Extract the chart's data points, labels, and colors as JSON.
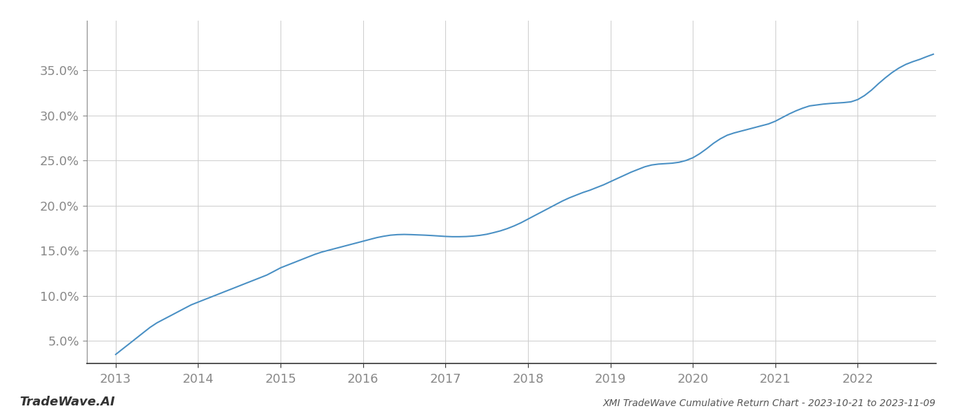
{
  "title": "XMI TradeWave Cumulative Return Chart - 2023-10-21 to 2023-11-09",
  "watermark": "TradeWave.AI",
  "line_color": "#4a90c4",
  "background_color": "#ffffff",
  "grid_color": "#cccccc",
  "x_values": [
    2013.0,
    2013.083,
    2013.167,
    2013.25,
    2013.333,
    2013.417,
    2013.5,
    2013.583,
    2013.667,
    2013.75,
    2013.833,
    2013.917,
    2014.0,
    2014.083,
    2014.167,
    2014.25,
    2014.333,
    2014.417,
    2014.5,
    2014.583,
    2014.667,
    2014.75,
    2014.833,
    2014.917,
    2015.0,
    2015.083,
    2015.167,
    2015.25,
    2015.333,
    2015.417,
    2015.5,
    2015.583,
    2015.667,
    2015.75,
    2015.833,
    2015.917,
    2016.0,
    2016.083,
    2016.167,
    2016.25,
    2016.333,
    2016.417,
    2016.5,
    2016.583,
    2016.667,
    2016.75,
    2016.833,
    2016.917,
    2017.0,
    2017.083,
    2017.167,
    2017.25,
    2017.333,
    2017.417,
    2017.5,
    2017.583,
    2017.667,
    2017.75,
    2017.833,
    2017.917,
    2018.0,
    2018.083,
    2018.167,
    2018.25,
    2018.333,
    2018.417,
    2018.5,
    2018.583,
    2018.667,
    2018.75,
    2018.833,
    2018.917,
    2019.0,
    2019.083,
    2019.167,
    2019.25,
    2019.333,
    2019.417,
    2019.5,
    2019.583,
    2019.667,
    2019.75,
    2019.833,
    2019.917,
    2020.0,
    2020.083,
    2020.167,
    2020.25,
    2020.333,
    2020.417,
    2020.5,
    2020.583,
    2020.667,
    2020.75,
    2020.833,
    2020.917,
    2021.0,
    2021.083,
    2021.167,
    2021.25,
    2021.333,
    2021.417,
    2021.5,
    2021.583,
    2021.667,
    2021.75,
    2021.833,
    2021.917,
    2022.0,
    2022.083,
    2022.167,
    2022.25,
    2022.333,
    2022.417,
    2022.5,
    2022.583,
    2022.667,
    2022.75,
    2022.833,
    2022.917
  ],
  "y_values": [
    3.5,
    4.1,
    4.7,
    5.3,
    5.9,
    6.5,
    7.0,
    7.4,
    7.8,
    8.2,
    8.6,
    9.0,
    9.3,
    9.6,
    9.9,
    10.2,
    10.5,
    10.8,
    11.1,
    11.4,
    11.7,
    12.0,
    12.3,
    12.7,
    13.1,
    13.4,
    13.7,
    14.0,
    14.3,
    14.6,
    14.85,
    15.05,
    15.25,
    15.45,
    15.65,
    15.85,
    16.05,
    16.25,
    16.45,
    16.6,
    16.72,
    16.78,
    16.8,
    16.78,
    16.75,
    16.72,
    16.68,
    16.63,
    16.58,
    16.55,
    16.55,
    16.57,
    16.62,
    16.7,
    16.82,
    17.0,
    17.2,
    17.45,
    17.75,
    18.1,
    18.5,
    18.9,
    19.3,
    19.7,
    20.1,
    20.5,
    20.85,
    21.15,
    21.45,
    21.7,
    22.0,
    22.3,
    22.65,
    23.0,
    23.35,
    23.7,
    24.0,
    24.3,
    24.5,
    24.6,
    24.65,
    24.7,
    24.8,
    25.0,
    25.3,
    25.75,
    26.3,
    26.9,
    27.4,
    27.8,
    28.05,
    28.25,
    28.45,
    28.65,
    28.85,
    29.05,
    29.35,
    29.75,
    30.15,
    30.5,
    30.8,
    31.05,
    31.15,
    31.25,
    31.32,
    31.37,
    31.42,
    31.5,
    31.75,
    32.2,
    32.8,
    33.5,
    34.15,
    34.75,
    35.25,
    35.65,
    35.95,
    36.2,
    36.5,
    36.78
  ],
  "xlim": [
    2012.65,
    2022.95
  ],
  "ylim": [
    2.5,
    40.5
  ],
  "yticks": [
    5.0,
    10.0,
    15.0,
    20.0,
    25.0,
    30.0,
    35.0
  ],
  "xticks": [
    2013,
    2014,
    2015,
    2016,
    2017,
    2018,
    2019,
    2020,
    2021,
    2022
  ],
  "line_width": 1.5,
  "title_fontsize": 10,
  "tick_fontsize": 13,
  "watermark_fontsize": 13
}
